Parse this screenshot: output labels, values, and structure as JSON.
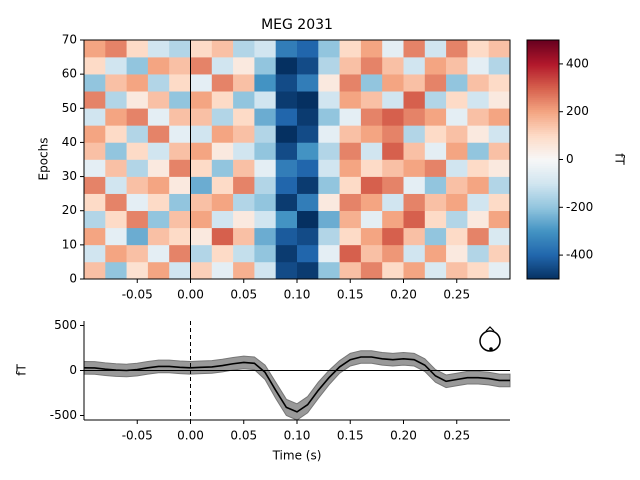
{
  "chart_data": [
    {
      "type": "heatmap",
      "title": "MEG 2031",
      "ylabel": "Epochs",
      "colorbar_label": "fT",
      "colormap": "RdBu_r",
      "x": [
        -0.1,
        -0.08,
        -0.06,
        -0.04,
        -0.02,
        0,
        0.02,
        0.04,
        0.06,
        0.08,
        0.1,
        0.12,
        0.14,
        0.16,
        0.18,
        0.2,
        0.22,
        0.24,
        0.26,
        0.28,
        0.3
      ],
      "y": [
        0,
        5,
        10,
        15,
        20,
        25,
        30,
        35,
        40,
        45,
        50,
        55,
        60,
        65,
        70
      ],
      "values": [
        [
          150,
          -200,
          80,
          200,
          -100,
          120,
          -50,
          180,
          -100,
          -450,
          -480,
          -200,
          150,
          250,
          100,
          200,
          -80,
          150,
          100,
          -50
        ],
        [
          -100,
          200,
          150,
          -50,
          250,
          -150,
          100,
          -120,
          -200,
          -480,
          -400,
          -50,
          300,
          150,
          220,
          -100,
          200,
          50,
          -150,
          120
        ],
        [
          200,
          -50,
          -250,
          150,
          100,
          50,
          300,
          150,
          -250,
          -420,
          -450,
          -150,
          100,
          200,
          300,
          150,
          -200,
          100,
          250,
          -80
        ],
        [
          -150,
          100,
          250,
          -200,
          150,
          200,
          -100,
          50,
          -100,
          -300,
          -500,
          -250,
          180,
          -50,
          200,
          300,
          100,
          -150,
          50,
          200
        ],
        [
          100,
          250,
          -50,
          100,
          -200,
          150,
          200,
          -150,
          -200,
          -480,
          -350,
          50,
          250,
          200,
          -100,
          250,
          150,
          200,
          -100,
          100
        ],
        [
          250,
          -100,
          150,
          200,
          50,
          -250,
          100,
          250,
          -150,
          -400,
          -480,
          -200,
          100,
          300,
          250,
          -50,
          -200,
          150,
          200,
          -150
        ],
        [
          -50,
          150,
          -150,
          50,
          250,
          100,
          -200,
          150,
          -50,
          -350,
          -400,
          -100,
          200,
          100,
          150,
          200,
          250,
          -100,
          100,
          50
        ],
        [
          150,
          -200,
          100,
          -100,
          150,
          200,
          50,
          -100,
          -200,
          -450,
          -300,
          -150,
          250,
          -100,
          300,
          150,
          -50,
          200,
          -200,
          150
        ],
        [
          200,
          100,
          -150,
          250,
          -50,
          -100,
          200,
          150,
          -150,
          -500,
          -450,
          -50,
          150,
          200,
          250,
          -150,
          100,
          150,
          50,
          -100
        ],
        [
          -100,
          200,
          250,
          -50,
          150,
          150,
          -150,
          100,
          -250,
          -400,
          -480,
          -200,
          -50,
          250,
          300,
          250,
          200,
          -50,
          150,
          200
        ],
        [
          250,
          -150,
          50,
          150,
          -200,
          200,
          100,
          -200,
          -100,
          -480,
          -500,
          -100,
          200,
          150,
          -100,
          300,
          -150,
          100,
          -100,
          50
        ],
        [
          -200,
          150,
          200,
          -150,
          100,
          -50,
          250,
          150,
          -300,
          -450,
          -350,
          50,
          250,
          -200,
          200,
          150,
          250,
          -200,
          150,
          100
        ],
        [
          100,
          -100,
          -200,
          200,
          150,
          250,
          -100,
          50,
          -200,
          -500,
          -450,
          -150,
          150,
          250,
          150,
          -100,
          200,
          150,
          -50,
          -150
        ],
        [
          200,
          250,
          100,
          -100,
          -150,
          100,
          150,
          -150,
          -100,
          -350,
          -400,
          -200,
          100,
          200,
          -50,
          250,
          -100,
          250,
          100,
          150
        ]
      ],
      "xlim": [
        -0.1,
        0.3
      ],
      "ylim": [
        0,
        70
      ],
      "xticks": [
        {
          "value": -0.05,
          "label": "-0.05"
        },
        {
          "value": 0,
          "label": "0.00"
        },
        {
          "value": 0.05,
          "label": "0.05"
        },
        {
          "value": 0.1,
          "label": "0.10"
        },
        {
          "value": 0.15,
          "label": "0.15"
        },
        {
          "value": 0.2,
          "label": "0.20"
        },
        {
          "value": 0.25,
          "label": "0.25"
        }
      ],
      "yticks": [
        0,
        10,
        20,
        30,
        40,
        50,
        60,
        70
      ],
      "clim": [
        -500,
        500
      ],
      "cticks": [
        -400,
        -200,
        0,
        200,
        400
      ]
    },
    {
      "type": "line",
      "xlabel": "Time (s)",
      "ylabel": "fT",
      "x": [
        -0.1,
        -0.09,
        -0.08,
        -0.07,
        -0.06,
        -0.05,
        -0.04,
        -0.03,
        -0.02,
        -0.01,
        0,
        0.01,
        0.02,
        0.03,
        0.04,
        0.05,
        0.06,
        0.07,
        0.08,
        0.09,
        0.1,
        0.11,
        0.12,
        0.13,
        0.14,
        0.15,
        0.16,
        0.17,
        0.18,
        0.19,
        0.2,
        0.21,
        0.22,
        0.23,
        0.24,
        0.25,
        0.26,
        0.27,
        0.28,
        0.29,
        0.3
      ],
      "series": [
        {
          "color": "#000000",
          "values": [
            30,
            28,
            15,
            5,
            0,
            10,
            30,
            45,
            45,
            35,
            30,
            35,
            40,
            55,
            75,
            90,
            80,
            -20,
            -220,
            -410,
            -460,
            -380,
            -220,
            -80,
            40,
            120,
            150,
            150,
            130,
            120,
            130,
            120,
            60,
            -60,
            -120,
            -100,
            -80,
            -80,
            -90,
            -110,
            -110
          ],
          "error": [
            70,
            70,
            70,
            70,
            70,
            70,
            70,
            70,
            70,
            70,
            70,
            70,
            70,
            70,
            70,
            70,
            70,
            80,
            90,
            90,
            90,
            90,
            90,
            80,
            70,
            70,
            70,
            70,
            70,
            70,
            70,
            70,
            70,
            70,
            70,
            70,
            70,
            70,
            70,
            70,
            70
          ]
        }
      ],
      "xlim": [
        -0.1,
        0.3
      ],
      "ylim": [
        -550,
        550
      ],
      "xticks": [
        {
          "value": -0.05,
          "label": "-0.05"
        },
        {
          "value": 0,
          "label": "0.00"
        },
        {
          "value": 0.05,
          "label": "0.05"
        },
        {
          "value": 0.1,
          "label": "0.10"
        },
        {
          "value": 0.15,
          "label": "0.15"
        },
        {
          "value": 0.2,
          "label": "0.20"
        },
        {
          "value": 0.25,
          "label": "0.25"
        }
      ],
      "yticks": [
        -500,
        0,
        500
      ]
    }
  ]
}
